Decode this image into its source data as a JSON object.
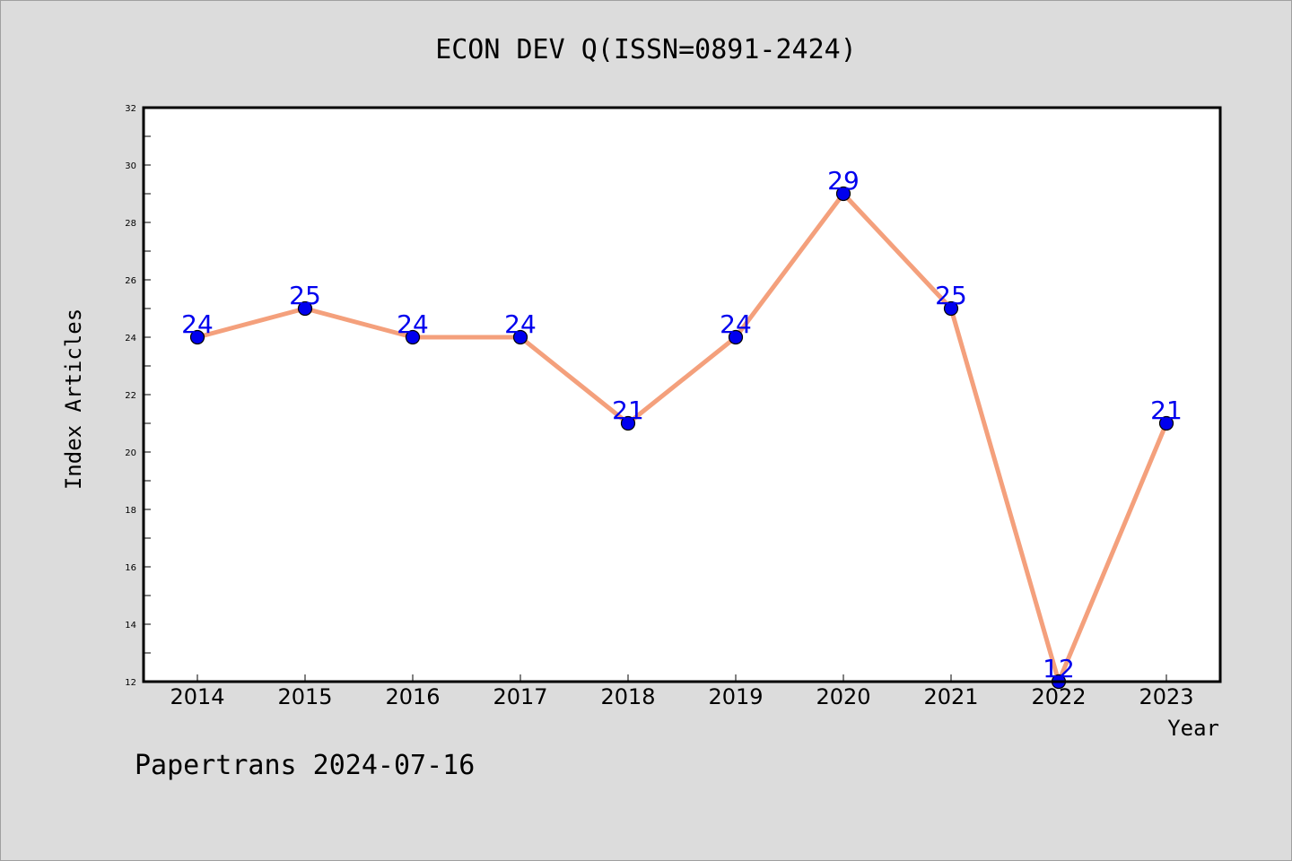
{
  "chart_data": {
    "type": "line",
    "title": "ECON DEV Q(ISSN=0891-2424)",
    "xlabel": "Year",
    "ylabel": "Index Articles",
    "categories": [
      "2014",
      "2015",
      "2016",
      "2017",
      "2018",
      "2019",
      "2020",
      "2021",
      "2022",
      "2023"
    ],
    "values": [
      24,
      25,
      24,
      24,
      21,
      24,
      29,
      25,
      12,
      21
    ],
    "ylim": [
      12,
      32
    ],
    "yticks": [
      "12",
      "14",
      "16",
      "18",
      "20",
      "22",
      "24",
      "26",
      "28",
      "30",
      "32"
    ],
    "grid": false,
    "line_color": "#f4a07c",
    "marker_color": "#0000ee",
    "label_color": "#0000ee"
  },
  "footer": {
    "note": "Papertrans 2024-07-16"
  }
}
